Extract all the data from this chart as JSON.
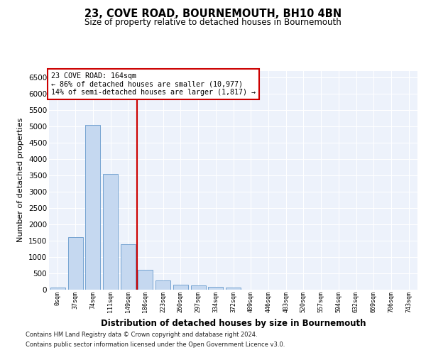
{
  "title": "23, COVE ROAD, BOURNEMOUTH, BH10 4BN",
  "subtitle": "Size of property relative to detached houses in Bournemouth",
  "xlabel": "Distribution of detached houses by size in Bournemouth",
  "ylabel": "Number of detached properties",
  "bin_labels": [
    "0sqm",
    "37sqm",
    "74sqm",
    "111sqm",
    "149sqm",
    "186sqm",
    "223sqm",
    "260sqm",
    "297sqm",
    "334sqm",
    "372sqm",
    "409sqm",
    "446sqm",
    "483sqm",
    "520sqm",
    "557sqm",
    "594sqm",
    "632sqm",
    "669sqm",
    "706sqm",
    "743sqm"
  ],
  "bar_values": [
    50,
    1600,
    5050,
    3550,
    1380,
    600,
    280,
    140,
    110,
    70,
    50,
    0,
    0,
    0,
    0,
    0,
    0,
    0,
    0,
    0,
    0
  ],
  "bar_color": "#c5d8f0",
  "bar_edge_color": "#6699cc",
  "ylim": [
    0,
    6700
  ],
  "yticks": [
    0,
    500,
    1000,
    1500,
    2000,
    2500,
    3000,
    3500,
    4000,
    4500,
    5000,
    5500,
    6000,
    6500
  ],
  "red_line_color": "#cc0000",
  "annotation_text_line1": "23 COVE ROAD: 164sqm",
  "annotation_text_line2": "← 86% of detached houses are smaller (10,977)",
  "annotation_text_line3": "14% of semi-detached houses are larger (1,817) →",
  "annotation_box_color": "#cc0000",
  "footer_line1": "Contains HM Land Registry data © Crown copyright and database right 2024.",
  "footer_line2": "Contains public sector information licensed under the Open Government Licence v3.0.",
  "background_color": "#edf2fb",
  "grid_color": "#ffffff",
  "fig_bg_color": "#ffffff"
}
